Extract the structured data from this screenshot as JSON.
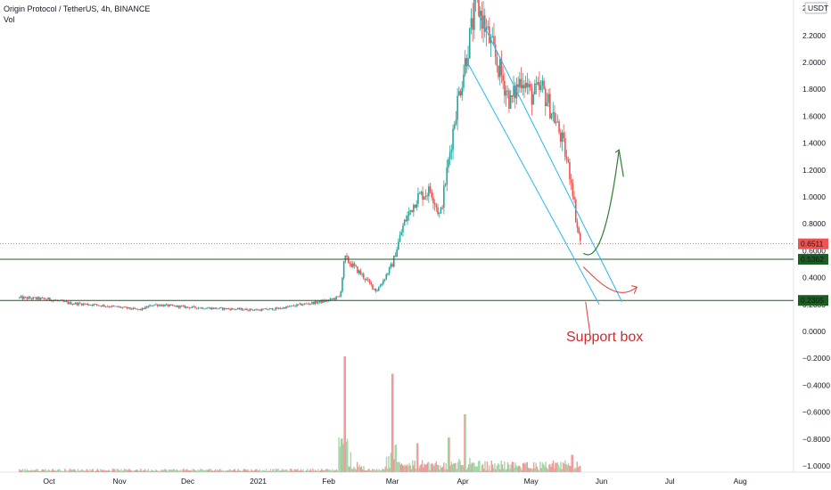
{
  "header": {
    "title": "Origin Protocol / TetherUS, 4h, BINANCE",
    "volume_label": "Vol"
  },
  "chart_data": {
    "type": "candlestick",
    "title": "Origin Protocol / TetherUS, 4h, BINANCE",
    "currency_label": "USDT",
    "y_ticks": [
      2.2,
      2.0,
      1.8,
      1.6,
      1.4,
      1.2,
      1.0,
      0.8,
      0.6,
      0.4,
      0.2,
      0.0,
      -0.2,
      -0.4,
      -0.6,
      -0.8,
      -1.0
    ],
    "y_tick_labels": [
      "2.2000",
      "2.0000",
      "1.8000",
      "1.6000",
      "1.4000",
      "1.2000",
      "1.0000",
      "0.8000",
      "0.6000",
      "0.4000",
      "0.2000",
      "0.0000",
      "−0.2000",
      "−0.4000",
      "−0.6000",
      "−0.8000",
      "−1.0000"
    ],
    "top_partial_label": "2",
    "x_ticks": [
      {
        "label": "Oct",
        "date": "2020-10-01"
      },
      {
        "label": "Nov",
        "date": "2020-11-01"
      },
      {
        "label": "Dec",
        "date": "2020-12-01"
      },
      {
        "label": "2021",
        "date": "2021-01-01"
      },
      {
        "label": "Feb",
        "date": "2021-02-01"
      },
      {
        "label": "Mar",
        "date": "2021-03-01"
      },
      {
        "label": "Apr",
        "date": "2021-04-01"
      },
      {
        "label": "May",
        "date": "2021-05-01"
      },
      {
        "label": "Jun",
        "date": "2021-06-01"
      },
      {
        "label": "Jul",
        "date": "2021-07-01"
      },
      {
        "label": "Aug",
        "date": "2021-08-01"
      }
    ],
    "price_path": [
      [
        "2020-09-18",
        0.25
      ],
      [
        "2020-10-01",
        0.24
      ],
      [
        "2020-10-10",
        0.21
      ],
      [
        "2020-10-20",
        0.2
      ],
      [
        "2020-11-01",
        0.18
      ],
      [
        "2020-11-10",
        0.16
      ],
      [
        "2020-11-16",
        0.2
      ],
      [
        "2020-12-01",
        0.18
      ],
      [
        "2020-12-15",
        0.17
      ],
      [
        "2021-01-01",
        0.16
      ],
      [
        "2021-01-10",
        0.17
      ],
      [
        "2021-01-20",
        0.2
      ],
      [
        "2021-02-01",
        0.23
      ],
      [
        "2021-02-06",
        0.26
      ],
      [
        "2021-02-08",
        0.55
      ],
      [
        "2021-02-15",
        0.43
      ],
      [
        "2021-02-22",
        0.3
      ],
      [
        "2021-02-25",
        0.38
      ],
      [
        "2021-03-01",
        0.5
      ],
      [
        "2021-03-06",
        0.8
      ],
      [
        "2021-03-12",
        1.0
      ],
      [
        "2021-03-18",
        1.05
      ],
      [
        "2021-03-22",
        0.85
      ],
      [
        "2021-03-26",
        1.3
      ],
      [
        "2021-03-29",
        1.65
      ],
      [
        "2021-04-02",
        2.0
      ],
      [
        "2021-04-07",
        2.45
      ],
      [
        "2021-04-12",
        2.2
      ],
      [
        "2021-04-17",
        1.95
      ],
      [
        "2021-04-22",
        1.7
      ],
      [
        "2021-04-27",
        1.9
      ],
      [
        "2021-05-01",
        1.75
      ],
      [
        "2021-05-06",
        1.8
      ],
      [
        "2021-05-11",
        1.6
      ],
      [
        "2021-05-15",
        1.4
      ],
      [
        "2021-05-19",
        1.1
      ],
      [
        "2021-05-21",
        0.8
      ],
      [
        "2021-05-23",
        0.65
      ]
    ],
    "volume_spikes": [
      {
        "date": "2021-02-08",
        "relative": 1.0
      },
      {
        "date": "2021-03-01",
        "relative": 0.85
      },
      {
        "date": "2021-03-12",
        "relative": 0.25
      },
      {
        "date": "2021-03-26",
        "relative": 0.3
      },
      {
        "date": "2021-04-02",
        "relative": 0.5
      },
      {
        "date": "2021-05-19",
        "relative": 0.15
      }
    ],
    "price_labels": [
      {
        "value": 0.6511,
        "text": "0.6511",
        "color": "#ef5350",
        "line": "dotted"
      },
      {
        "value": 0.5362,
        "text": "0.5362",
        "color": "#1b5e20",
        "line": "solid"
      },
      {
        "value": 0.2305,
        "text": "0.2305",
        "color": "#1b5e20",
        "line": "solid"
      }
    ],
    "channel_lines": [
      {
        "from": [
          "2021-04-08",
          2.35
        ],
        "to": [
          "2021-06-10",
          0.22
        ]
      },
      {
        "from": [
          "2021-04-03",
          2.0
        ],
        "to": [
          "2021-05-31",
          0.2
        ]
      }
    ],
    "annotations": [
      {
        "text": "Support box",
        "color": "#cc2b2b"
      }
    ],
    "colors": {
      "up": "#26a69a",
      "down": "#ef5350",
      "channel": "#29b6f6",
      "support": "#1b5e20",
      "arrow_green": "#2e7d32",
      "arrow_red": "#e53935"
    }
  }
}
